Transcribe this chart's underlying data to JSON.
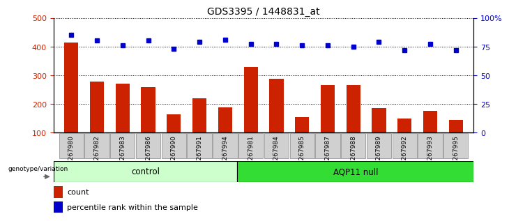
{
  "title": "GDS3395 / 1448831_at",
  "samples": [
    "GSM267980",
    "GSM267982",
    "GSM267983",
    "GSM267986",
    "GSM267990",
    "GSM267991",
    "GSM267994",
    "GSM267981",
    "GSM267984",
    "GSM267985",
    "GSM267987",
    "GSM267988",
    "GSM267989",
    "GSM267992",
    "GSM267993",
    "GSM267995"
  ],
  "counts": [
    415,
    278,
    270,
    258,
    163,
    220,
    188,
    330,
    288,
    155,
    265,
    265,
    185,
    148,
    175,
    145
  ],
  "percentile_ranks": [
    85,
    80,
    76,
    80,
    73,
    79,
    81,
    77,
    77,
    76,
    76,
    75,
    79,
    72,
    77,
    72
  ],
  "groups": [
    "control",
    "control",
    "control",
    "control",
    "control",
    "control",
    "control",
    "AQP11 null",
    "AQP11 null",
    "AQP11 null",
    "AQP11 null",
    "AQP11 null",
    "AQP11 null",
    "AQP11 null",
    "AQP11 null",
    "AQP11 null"
  ],
  "n_control": 7,
  "n_aqp": 9,
  "group_colors": {
    "control": "#CCFFCC",
    "AQP11 null": "#33DD33"
  },
  "bar_color": "#CC2200",
  "dot_color": "#0000CC",
  "ylim_left": [
    100,
    500
  ],
  "ylim_right": [
    0,
    100
  ],
  "yticks_left": [
    100,
    200,
    300,
    400,
    500
  ],
  "yticks_right": [
    0,
    25,
    50,
    75,
    100
  ],
  "xtick_bg": "#D0D0D0",
  "xtick_border": "#888888",
  "grid_color": "black",
  "legend_count_label": "count",
  "legend_pct_label": "percentile rank within the sample",
  "genotype_label": "genotype/variation"
}
